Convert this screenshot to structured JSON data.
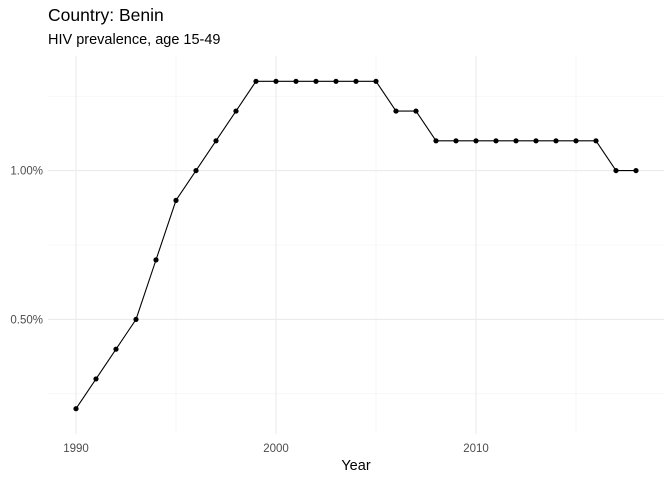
{
  "chart_data": {
    "type": "line",
    "title": "Country: Benin",
    "subtitle": "HIV prevalence, age 15-49",
    "xlabel": "Year",
    "ylabel": "",
    "x": [
      1990,
      1991,
      1992,
      1993,
      1994,
      1995,
      1996,
      1997,
      1998,
      1999,
      2000,
      2001,
      2002,
      2003,
      2004,
      2005,
      2006,
      2007,
      2008,
      2009,
      2010,
      2011,
      2012,
      2013,
      2014,
      2015,
      2016,
      2017,
      2018
    ],
    "series": [
      {
        "values": [
          0.2,
          0.3,
          0.4,
          0.5,
          0.7,
          0.9,
          1.0,
          1.1,
          1.2,
          1.3,
          1.3,
          1.3,
          1.3,
          1.3,
          1.3,
          1.3,
          1.2,
          1.2,
          1.1,
          1.1,
          1.1,
          1.1,
          1.1,
          1.1,
          1.1,
          1.1,
          1.1,
          1.0,
          1.0
        ],
        "color": "#000000"
      }
    ],
    "xlim": [
      1988.6,
      2019.4
    ],
    "ylim": [
      0.115,
      1.385
    ],
    "x_major_ticks": [
      1990,
      2000,
      2010
    ],
    "x_tick_labels": [
      "1990",
      "2000",
      "2010"
    ],
    "x_minor_ticks": [
      1995,
      2005,
      2015
    ],
    "y_major_ticks": [
      0.5,
      1.0
    ],
    "y_tick_labels": [
      "0.50%",
      "1.00%"
    ],
    "y_minor_ticks": [
      0.25,
      0.75,
      1.25
    ],
    "grid": true,
    "legend": "none"
  }
}
